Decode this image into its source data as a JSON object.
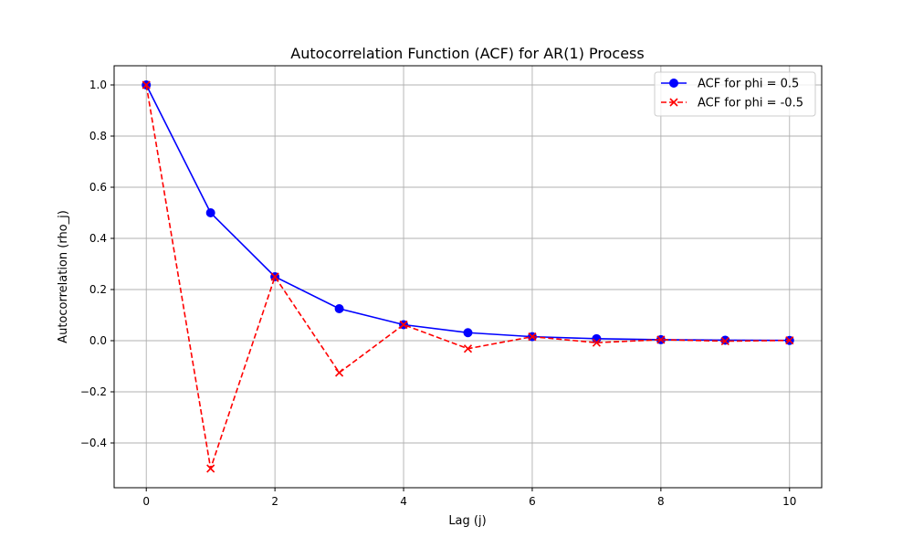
{
  "chart_data": {
    "type": "line",
    "title": "Autocorrelation Function (ACF) for AR(1) Process",
    "xlabel": "Lag (j)",
    "ylabel": "Autocorrelation (rho_j)",
    "xlim": [
      -0.5,
      10.5
    ],
    "ylim": [
      -0.575,
      1.075
    ],
    "xticks": [
      0,
      2,
      4,
      6,
      8,
      10
    ],
    "yticks": [
      -0.4,
      -0.2,
      0.0,
      0.2,
      0.4,
      0.6,
      0.8,
      1.0
    ],
    "xtick_labels": [
      "0",
      "2",
      "4",
      "6",
      "8",
      "10"
    ],
    "ytick_labels": [
      "−0.4",
      "−0.2",
      "0.0",
      "0.2",
      "0.4",
      "0.6",
      "0.8",
      "1.0"
    ],
    "grid": true,
    "legend_position": "top-right",
    "x": [
      0,
      1,
      2,
      3,
      4,
      5,
      6,
      7,
      8,
      9,
      10
    ],
    "series": [
      {
        "name": "ACF for phi = 0.5",
        "values": [
          1.0,
          0.5,
          0.25,
          0.125,
          0.0625,
          0.03125,
          0.015625,
          0.0078125,
          0.00390625,
          0.001953125,
          0.0009765625
        ],
        "color": "#0000ff",
        "marker": "circle",
        "line_style": "solid"
      },
      {
        "name": "ACF for phi = -0.5",
        "values": [
          1.0,
          -0.5,
          0.25,
          -0.125,
          0.0625,
          -0.03125,
          0.015625,
          -0.0078125,
          0.00390625,
          -0.001953125,
          0.0009765625
        ],
        "color": "#ff0000",
        "marker": "x",
        "line_style": "dashed"
      }
    ]
  }
}
